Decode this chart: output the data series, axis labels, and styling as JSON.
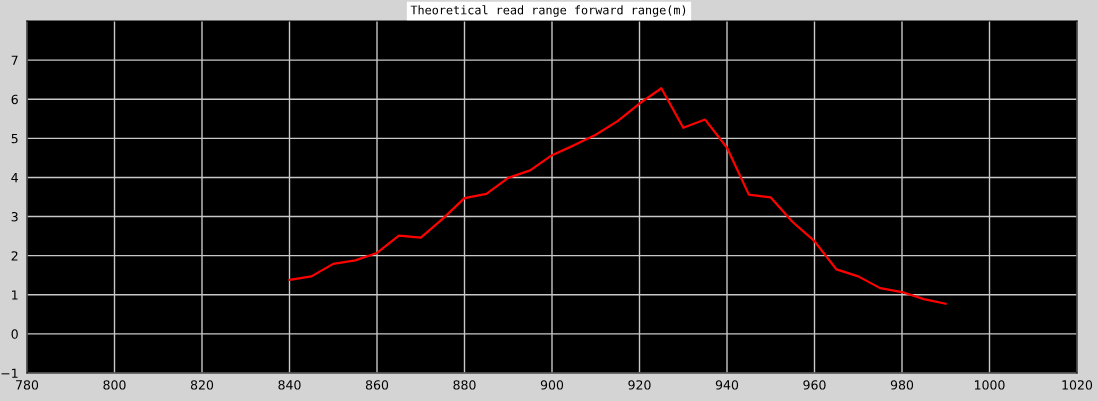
{
  "chart_data": {
    "type": "line",
    "title": "Theoretical read range forward range(m)",
    "x": [
      840,
      845,
      850,
      855,
      860,
      865,
      870,
      875,
      880,
      885,
      890,
      895,
      900,
      905,
      910,
      915,
      920,
      925,
      930,
      935,
      940,
      945,
      950,
      955,
      960,
      965,
      970,
      975,
      980,
      985,
      990
    ],
    "series": [
      {
        "color": "#ff0000",
        "values": [
          1.38,
          1.47,
          1.79,
          1.88,
          2.07,
          2.51,
          2.46,
          2.94,
          3.47,
          3.58,
          3.99,
          4.18,
          4.57,
          4.82,
          5.09,
          5.44,
          5.89,
          6.28,
          5.27,
          5.48,
          4.76,
          3.56,
          3.49,
          2.86,
          2.37,
          1.65,
          1.47,
          1.17,
          1.07,
          0.89,
          0.77
        ]
      }
    ],
    "xlim": [
      780,
      1020
    ],
    "ylim": [
      -1,
      8
    ],
    "xticks": [
      780,
      800,
      820,
      840,
      860,
      880,
      900,
      920,
      940,
      960,
      980,
      1000,
      1020
    ],
    "yticks": [
      -1,
      0,
      1,
      2,
      3,
      4,
      5,
      6,
      7
    ],
    "grid": true,
    "marker": "none",
    "line_style": "solid"
  }
}
